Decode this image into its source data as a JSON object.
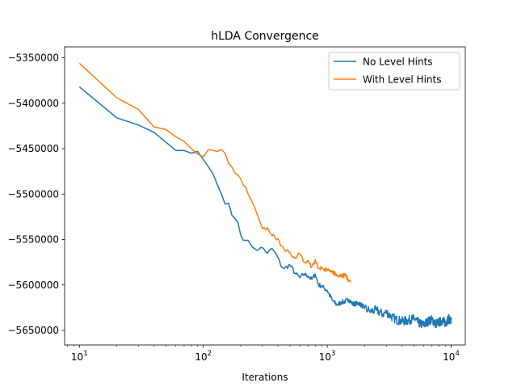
{
  "chart_data": {
    "type": "line",
    "title": "hLDA Convergence",
    "xlabel": "Iterations",
    "ylabel": "",
    "x_scale": "log",
    "xlim": [
      7.6,
      13000
    ],
    "ylim": [
      -5666000,
      -5338000
    ],
    "x_ticks": [
      {
        "value": 10,
        "base": "10",
        "exp": "1"
      },
      {
        "value": 100,
        "base": "10",
        "exp": "2"
      },
      {
        "value": 1000,
        "base": "10",
        "exp": "3"
      },
      {
        "value": 10000,
        "base": "10",
        "exp": "4"
      }
    ],
    "y_ticks": [
      {
        "value": -5350000,
        "label": "−5350000"
      },
      {
        "value": -5400000,
        "label": "−5400000"
      },
      {
        "value": -5450000,
        "label": "−5450000"
      },
      {
        "value": -5500000,
        "label": "−5500000"
      },
      {
        "value": -5550000,
        "label": "−5550000"
      },
      {
        "value": -5600000,
        "label": "−5600000"
      },
      {
        "value": -5650000,
        "label": "−5650000"
      }
    ],
    "grid": false,
    "legend_position": "upper-right",
    "series": [
      {
        "name": "No Level Hints",
        "color": "#1f77b4",
        "x": [
          10,
          20,
          30,
          40,
          50,
          60,
          70,
          80,
          90,
          100,
          110,
          120,
          130,
          140,
          150,
          160,
          170,
          180,
          190,
          200,
          220,
          240,
          260,
          280,
          300,
          330,
          360,
          400,
          420,
          450,
          500,
          550,
          600,
          650,
          700,
          750,
          800,
          850,
          900,
          950,
          1000,
          1100,
          1200,
          1300,
          1400,
          1500,
          1600,
          1800,
          2000,
          2200,
          2500,
          2800,
          3000,
          3300,
          3600,
          4000,
          4500,
          5000,
          5500,
          6000,
          6500,
          7000,
          7500,
          8000,
          8500,
          9000,
          9500,
          10000
        ],
        "y": [
          -5382000,
          -5416000,
          -5424000,
          -5432000,
          -5443000,
          -5452000,
          -5452000,
          -5455000,
          -5453000,
          -5462000,
          -5470000,
          -5478000,
          -5490000,
          -5500000,
          -5511000,
          -5510000,
          -5523000,
          -5527000,
          -5531000,
          -5545000,
          -5551000,
          -5555000,
          -5560000,
          -5561000,
          -5559000,
          -5565000,
          -5560000,
          -5570000,
          -5578000,
          -5582000,
          -5578000,
          -5587000,
          -5592000,
          -5588000,
          -5590000,
          -5594000,
          -5588000,
          -5600000,
          -5601000,
          -5604000,
          -5606000,
          -5617000,
          -5622000,
          -5619000,
          -5618000,
          -5616000,
          -5621000,
          -5620000,
          -5625000,
          -5629000,
          -5628000,
          -5632000,
          -5630000,
          -5635000,
          -5638000,
          -5640000,
          -5639000,
          -5637000,
          -5642000,
          -5644000,
          -5640000,
          -5638000,
          -5643000,
          -5641000,
          -5639000,
          -5642000,
          -5637000,
          -5640000
        ]
      },
      {
        "name": "With Level Hints",
        "color": "#ff7f0e",
        "x": [
          10,
          20,
          30,
          40,
          50,
          60,
          70,
          80,
          90,
          100,
          110,
          120,
          130,
          140,
          150,
          160,
          170,
          180,
          190,
          200,
          220,
          240,
          260,
          280,
          300,
          330,
          360,
          400,
          420,
          450,
          500,
          550,
          600,
          650,
          700,
          750,
          800,
          850,
          900,
          950,
          1000,
          1100,
          1200,
          1300,
          1400,
          1500,
          1550
        ],
        "y": [
          -5356000,
          -5394000,
          -5407000,
          -5426000,
          -5429000,
          -5437000,
          -5442000,
          -5450000,
          -5456000,
          -5459000,
          -5451000,
          -5452000,
          -5453000,
          -5451000,
          -5455000,
          -5466000,
          -5470000,
          -5477000,
          -5479000,
          -5483000,
          -5492000,
          -5505000,
          -5515000,
          -5527000,
          -5538000,
          -5537000,
          -5546000,
          -5549000,
          -5557000,
          -5561000,
          -5564000,
          -5571000,
          -5566000,
          -5575000,
          -5573000,
          -5580000,
          -5572000,
          -5582000,
          -5581000,
          -5585000,
          -5583000,
          -5586000,
          -5589000,
          -5591000,
          -5589000,
          -5595000,
          -5597000
        ]
      }
    ]
  }
}
